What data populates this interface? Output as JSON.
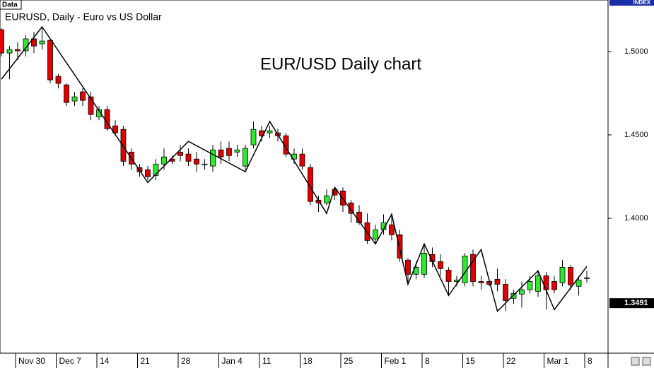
{
  "chart_data": {
    "type": "candlestick",
    "tab_label": "Data",
    "title": "EURUSD, Daily - Euro vs US Dollar",
    "annotation": "EUR/USD Daily chart",
    "axis_badge": "INDEX",
    "categories": [
      null,
      null,
      "Nov 30",
      null,
      null,
      null,
      null,
      "Dec 7",
      null,
      null,
      null,
      null,
      "14",
      null,
      null,
      null,
      null,
      "21",
      null,
      null,
      null,
      null,
      "28",
      null,
      null,
      null,
      null,
      "Jan 4",
      null,
      null,
      null,
      null,
      "11",
      null,
      null,
      null,
      null,
      "18",
      null,
      null,
      null,
      null,
      "25",
      null,
      null,
      null,
      null,
      "Feb 1",
      null,
      null,
      null,
      null,
      "8",
      null,
      null,
      null,
      null,
      "15",
      null,
      null,
      null,
      null,
      "22",
      null,
      null,
      null,
      null,
      "Mar 1",
      null,
      null,
      null,
      null,
      "8"
    ],
    "open": [
      1.5131,
      1.4991,
      1.5012,
      1.5004,
      1.5076,
      1.5046,
      1.5067,
      1.4851,
      1.48,
      1.4703,
      1.4758,
      1.4728,
      1.4609,
      1.4652,
      1.4554,
      1.4533,
      1.4397,
      1.4304,
      1.4291,
      1.4257,
      1.4325,
      1.4355,
      1.4397,
      1.4385,
      1.4355,
      1.4325,
      1.4313,
      1.441,
      1.4419,
      1.4397,
      1.4313,
      1.444,
      1.4525,
      1.4512,
      1.4512,
      1.4495,
      1.4355,
      1.4385,
      1.4304,
      1.4109,
      1.4092,
      1.4173,
      1.4164,
      1.4092,
      1.4037,
      1.3973,
      1.3876,
      1.3931,
      1.3961,
      1.3901,
      1.3749,
      1.3664,
      1.3664,
      1.3783,
      1.374,
      1.3689,
      1.3621,
      1.3613,
      1.3783,
      1.3621,
      1.3621,
      1.3634,
      1.3604,
      1.352,
      1.3545,
      1.3571,
      1.3562,
      1.3655,
      1.3621,
      1.3613,
      1.3706,
      1.3592,
      1.3643
    ],
    "high": [
      1.5139,
      1.5033,
      1.5055,
      1.5097,
      1.5118,
      1.5139,
      1.5076,
      1.4864,
      1.4809,
      1.4758,
      1.4779,
      1.4758,
      1.4673,
      1.4673,
      1.4588,
      1.4554,
      1.4419,
      1.4325,
      1.4313,
      1.4355,
      1.4419,
      1.4376,
      1.444,
      1.4419,
      1.4397,
      1.4355,
      1.444,
      1.4461,
      1.4461,
      1.444,
      1.444,
      1.458,
      1.4554,
      1.4554,
      1.4537,
      1.4512,
      1.4419,
      1.4419,
      1.4325,
      1.4135,
      1.4173,
      1.4185,
      1.4185,
      1.4109,
      1.4079,
      1.4029,
      1.3961,
      1.4024,
      1.4029,
      1.3931,
      1.3761,
      1.374,
      1.3846,
      1.3825,
      1.3783,
      1.3706,
      1.3655,
      1.3791,
      1.3812,
      1.3655,
      1.3634,
      1.3698,
      1.3634,
      1.3571,
      1.3621,
      1.3655,
      1.3685,
      1.3677,
      1.3655,
      1.3749,
      1.3719,
      1.3655,
      1.3685
    ],
    "low": [
      1.497,
      1.4834,
      1.4949,
      1.497,
      1.4991,
      1.5012,
      1.4809,
      1.4779,
      1.4673,
      1.4673,
      1.4673,
      1.4588,
      1.4588,
      1.4525,
      1.4495,
      1.4313,
      1.4291,
      1.4249,
      1.4228,
      1.4228,
      1.4291,
      1.4325,
      1.4342,
      1.4313,
      1.4279,
      1.4291,
      1.4279,
      1.4325,
      1.4342,
      1.4368,
      1.4291,
      1.4419,
      1.4461,
      1.4482,
      1.4461,
      1.4368,
      1.4325,
      1.4291,
      1.4079,
      1.4037,
      1.4079,
      1.4109,
      1.4037,
      1.3973,
      1.3961,
      1.3846,
      1.3846,
      1.3901,
      1.3867,
      1.374,
      1.3604,
      1.3634,
      1.3643,
      1.3706,
      1.3655,
      1.3537,
      1.3592,
      1.3592,
      1.3592,
      1.3571,
      1.3592,
      1.3562,
      1.3443,
      1.3486,
      1.3465,
      1.3549,
      1.3529,
      1.3452,
      1.3549,
      1.3592,
      1.3571,
      1.3537,
      1.3613
    ],
    "close": [
      1.4991,
      1.5012,
      1.5004,
      1.5076,
      1.5033,
      1.5063,
      1.483,
      1.4809,
      1.4694,
      1.4728,
      1.4707,
      1.4622,
      1.4652,
      1.4537,
      1.4512,
      1.4342,
      1.4325,
      1.4279,
      1.4249,
      1.4325,
      1.4368,
      1.4342,
      1.4376,
      1.4342,
      1.4325,
      1.4325,
      1.441,
      1.4368,
      1.4376,
      1.441,
      1.4419,
      1.4533,
      1.4495,
      1.4525,
      1.4495,
      1.4385,
      1.4385,
      1.4313,
      1.4101,
      1.4092,
      1.4135,
      1.4139,
      1.4079,
      1.4029,
      1.3973,
      1.3867,
      1.3931,
      1.3973,
      1.3901,
      1.3761,
      1.3664,
      1.3706,
      1.3791,
      1.374,
      1.3698,
      1.3621,
      1.363,
      1.3774,
      1.3621,
      1.3613,
      1.3604,
      1.3604,
      1.3507,
      1.3549,
      1.3571,
      1.3621,
      1.3655,
      1.3571,
      1.3571,
      1.3706,
      1.36,
      1.363,
      1.3643
    ],
    "up_color": "#2ee82e",
    "down_color": "#e00000",
    "zigzag": {
      "x": [
        0,
        5,
        18,
        23,
        30,
        33,
        40,
        41,
        46,
        48,
        50,
        52,
        55,
        59,
        61,
        66,
        68,
        72
      ],
      "values": [
        1.4834,
        1.5148,
        1.4215,
        1.4461,
        1.4279,
        1.458,
        1.4029,
        1.4185,
        1.3846,
        1.4024,
        1.3604,
        1.3846,
        1.3537,
        1.3812,
        1.3443,
        1.3685,
        1.3452,
        1.3711
      ],
      "color": "#000000"
    },
    "ylim": [
      1.3191,
      1.5309
    ],
    "yticks": [
      {
        "value": 1.5,
        "label": "1.5000"
      },
      {
        "value": 1.45,
        "label": "1.4500"
      },
      {
        "value": 1.4,
        "label": "1.4000"
      }
    ],
    "last_price": {
      "value": 1.3491,
      "label": "1.3491"
    }
  }
}
